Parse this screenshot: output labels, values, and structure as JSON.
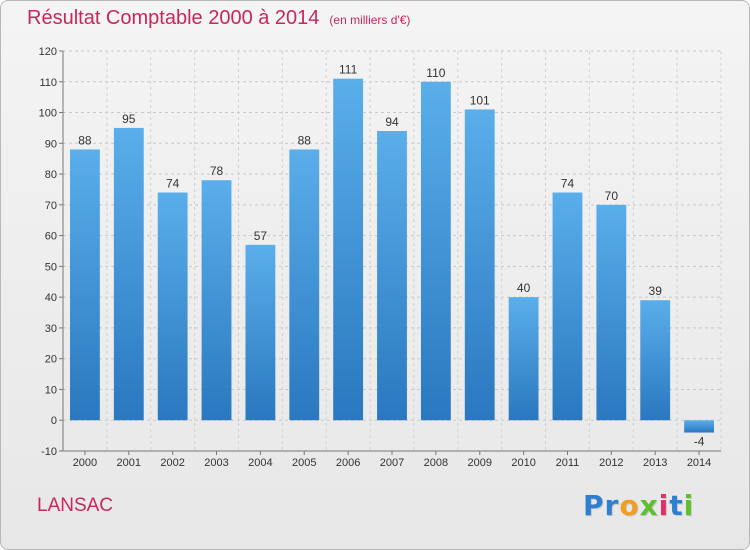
{
  "header": {
    "title": "Résultat Comptable 2000 à 2014",
    "unit": "(en milliers d'€)"
  },
  "footer": {
    "commune": "LANSAC",
    "logo_letters": [
      "P",
      "r",
      "o",
      "x",
      "i",
      "t",
      "i"
    ],
    "logo_colors": [
      "#2f7fd0",
      "#2f7fd0",
      "#f0a020",
      "#5fbf2f",
      "#e0306a",
      "#2f7fd0",
      "#5fbf2f"
    ]
  },
  "colors": {
    "bar_top": "#5aaeea",
    "bar_bottom": "#2a78c0",
    "title": "#c8275a"
  },
  "chart_data": {
    "type": "bar",
    "categories": [
      "2000",
      "2001",
      "2002",
      "2003",
      "2004",
      "2005",
      "2006",
      "2007",
      "2008",
      "2009",
      "2010",
      "2011",
      "2012",
      "2013",
      "2014"
    ],
    "values": [
      88,
      95,
      74,
      78,
      57,
      88,
      111,
      94,
      110,
      101,
      40,
      74,
      70,
      39,
      -4
    ],
    "ylim": [
      -10,
      120
    ],
    "yticks": [
      -10,
      0,
      10,
      20,
      30,
      40,
      50,
      60,
      70,
      80,
      90,
      100,
      110,
      120
    ],
    "grid": true,
    "data_labels": true
  }
}
